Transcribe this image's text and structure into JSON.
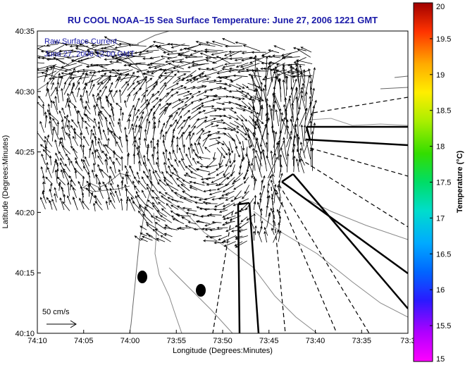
{
  "title": "RU COOL  NOAA–15  Sea Surface Temperature:  June 27, 2006 1221 GMT",
  "legend": {
    "line1": "Raw Surface Current",
    "line2": "June 27, 2006 12:00 GMT"
  },
  "scale_label": "50 cm/s",
  "xlabel": "Longitude (Degrees:Minutes)",
  "ylabel": "Latitude (Degrees:Minutes)",
  "x_ticks": [
    "74:10",
    "74:05",
    "74:00",
    "73:55",
    "73:50",
    "73:45",
    "73:40",
    "73:35",
    "73:3"
  ],
  "y_ticks": [
    "40:35",
    "40:30",
    "40:25",
    "40:20",
    "40:15",
    "40:10"
  ],
  "colorbar": {
    "label": "Temperature (°C)",
    "ticks": [
      "20",
      "19.5",
      "19",
      "18.5",
      "18",
      "17.5",
      "17",
      "16.5",
      "16",
      "15.5",
      "15"
    ],
    "min": 15,
    "max": 20,
    "colors": [
      "#ff00ff",
      "#9b00ff",
      "#1a1aff",
      "#0088ff",
      "#00ddee",
      "#00dd88",
      "#33dd00",
      "#ccee00",
      "#ffee00",
      "#ffaa00",
      "#ff4400",
      "#dd0000",
      "#990000"
    ]
  },
  "map_extent": {
    "lon_min": -74.1667,
    "lon_max": -73.5,
    "lat_min": 40.1667,
    "lat_max": 40.5833
  }
}
